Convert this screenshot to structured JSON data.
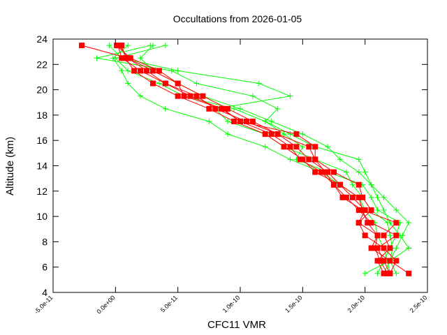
{
  "chart_data": {
    "type": "line",
    "title": "Occultations from 2026-01-05",
    "xlabel": "CFC11 VMR",
    "ylabel": "Altitude (km)",
    "xlim": [
      -5e-11,
      2.5e-10
    ],
    "ylim": [
      4,
      24
    ],
    "xticks": [
      -5e-11,
      0,
      5e-11,
      1e-10,
      1.5e-10,
      2e-10,
      2.5e-10
    ],
    "xtick_labels": [
      "-5.0e-11",
      "0.0e+00",
      "5.0e-11",
      "1.0e-10",
      "1.5e-10",
      "2.0e-10",
      "2.5e-10"
    ],
    "yticks": [
      4,
      6,
      8,
      10,
      12,
      14,
      16,
      18,
      20,
      22,
      24
    ],
    "ytick_labels": [
      "4",
      "6",
      "8",
      "10",
      "12",
      "14",
      "16",
      "18",
      "20",
      "22",
      "24"
    ],
    "grid": false,
    "altitudes": [
      5.5,
      6.5,
      7.5,
      8.5,
      9.5,
      10.5,
      11.5,
      12.5,
      13.5,
      14.5,
      15.5,
      16.5,
      17.5,
      18.5,
      19.5,
      20.5,
      21.5,
      22.5,
      23.5
    ],
    "series": [
      {
        "marker": "plus",
        "color": "#00ff00",
        "values": [
          2e-10,
          2.2e-10,
          2.25e-10,
          2.3e-10,
          2.35e-10,
          2.25e-10,
          2.15e-10,
          2.05e-10,
          1.95e-10,
          1.8e-10,
          1.7e-10,
          1.5e-10,
          1.25e-10,
          1e-10,
          7e-11,
          5e-11,
          3e-11,
          2e-11,
          3e-11
        ]
      },
      {
        "marker": "plus",
        "color": "#00ff00",
        "values": [
          2.25e-10,
          2.2e-10,
          2.35e-10,
          2.28e-10,
          2.2e-10,
          2.15e-10,
          2.1e-10,
          2.05e-10,
          2e-10,
          1.95e-10,
          1.6e-10,
          1.4e-10,
          1.2e-10,
          9.5e-11,
          5.5e-11,
          3.5e-11,
          1e-11,
          0,
          4e-11
        ]
      },
      {
        "marker": "plus",
        "color": "#00ff00",
        "values": [
          2.1e-10,
          2.15e-10,
          2.2e-10,
          2.25e-10,
          2.28e-10,
          2.1e-10,
          2.05e-10,
          1.98e-10,
          1.7e-10,
          1.45e-10,
          1.5e-10,
          1.35e-10,
          1.2e-10,
          1.3e-10,
          1.1e-10,
          6.5e-11,
          4.5e-11,
          -1.5e-11,
          2.8e-11
        ]
      },
      {
        "marker": "plus",
        "color": "#00ff00",
        "values": [
          2.15e-10,
          2.2e-10,
          2.22e-10,
          2.2e-10,
          2.18e-10,
          2.05e-10,
          1.98e-10,
          1.9e-10,
          1.85e-10,
          1.6e-10,
          1.35e-10,
          1.2e-10,
          9e-11,
          8e-11,
          1.4e-10,
          1.15e-10,
          5e-11,
          5e-12,
          -5e-12
        ]
      },
      {
        "marker": "plus",
        "color": "#00ff00",
        "values": [
          2.2e-10,
          2.18e-10,
          2.15e-10,
          2.1e-10,
          2.08e-10,
          2e-10,
          1.95e-10,
          1.8e-10,
          1.65e-10,
          1.4e-10,
          1.2e-10,
          9e-11,
          7.5e-11,
          4e-11,
          2e-11,
          1e-11,
          5e-12,
          -2e-12,
          1e-11
        ]
      },
      {
        "marker": "square",
        "color": "#ff0000",
        "values": [
          2.2e-10,
          2.15e-10,
          2.1e-10,
          2.25e-10,
          2.05e-10,
          1.95e-10,
          1.85e-10,
          1.75e-10,
          1.65e-10,
          1.48e-10,
          1.4e-10,
          1.25e-10,
          1e-10,
          8.5e-11,
          6e-11,
          4e-11,
          2e-11,
          5e-12,
          2e-12
        ]
      },
      {
        "marker": "square",
        "color": "#ff0000",
        "values": [
          2.35e-10,
          2.2e-10,
          2.05e-10,
          2.1e-10,
          1.95e-10,
          2e-10,
          1.9e-10,
          1.8e-10,
          1.7e-10,
          1.55e-10,
          1.45e-10,
          1.3e-10,
          1.1e-10,
          9e-11,
          7e-11,
          5e-11,
          3e-11,
          1e-11,
          -2.7e-11
        ]
      },
      {
        "marker": "square",
        "color": "#ff0000",
        "values": [
          2.15e-10,
          2.1e-10,
          2.2e-10,
          2.15e-10,
          2.25e-10,
          1.98e-10,
          1.95e-10,
          1.8e-10,
          1.6e-10,
          1.5e-10,
          1.35e-10,
          1.2e-10,
          9.5e-11,
          7.5e-11,
          5e-11,
          3e-11,
          1.5e-11,
          8e-12,
          5e-12
        ]
      },
      {
        "marker": "square",
        "color": "#ff0000",
        "values": [
          2.2e-10,
          2.25e-10,
          2.15e-10,
          2e-10,
          1.95e-10,
          2.05e-10,
          1.98e-10,
          1.95e-10,
          1.75e-10,
          1.6e-10,
          1.55e-10,
          1.3e-10,
          1.05e-10,
          8e-11,
          6.5e-11,
          4e-11,
          2.5e-11,
          1e-11,
          3e-12
        ]
      },
      {
        "marker": "square",
        "color": "#ff0000",
        "values": [
          2.18e-10,
          2.12e-10,
          2.08e-10,
          2.1e-10,
          2.02e-10,
          1.98e-10,
          1.82e-10,
          1.75e-10,
          1.68e-10,
          1.6e-10,
          1.6e-10,
          1.45e-10,
          1e-10,
          8.6e-11,
          5.5e-11,
          5e-11,
          3.5e-11,
          1.2e-11,
          1e-12
        ]
      }
    ]
  }
}
